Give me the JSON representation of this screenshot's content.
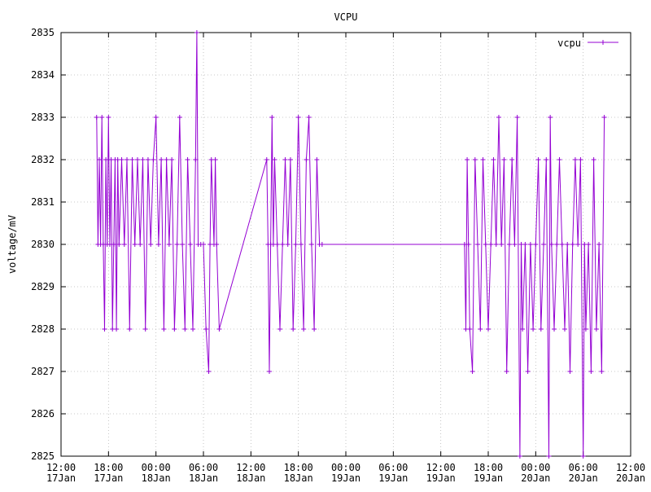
{
  "chart_data": {
    "type": "line",
    "title": "VCPU",
    "xlabel": "",
    "ylabel": "voltage/mV",
    "ylim": [
      2825,
      2835
    ],
    "y_ticks": [
      2825,
      2826,
      2827,
      2828,
      2829,
      2830,
      2831,
      2832,
      2833,
      2834,
      2835
    ],
    "x_range": [
      "2017-01-17 12:00",
      "2017-01-20 12:00"
    ],
    "x_ticks": [
      {
        "time": "12:00",
        "date": "17Jan"
      },
      {
        "time": "18:00",
        "date": "17Jan"
      },
      {
        "time": "00:00",
        "date": "18Jan"
      },
      {
        "time": "06:00",
        "date": "18Jan"
      },
      {
        "time": "12:00",
        "date": "18Jan"
      },
      {
        "time": "18:00",
        "date": "18Jan"
      },
      {
        "time": "00:00",
        "date": "19Jan"
      },
      {
        "time": "06:00",
        "date": "19Jan"
      },
      {
        "time": "12:00",
        "date": "19Jan"
      },
      {
        "time": "18:00",
        "date": "19Jan"
      },
      {
        "time": "00:00",
        "date": "20Jan"
      },
      {
        "time": "06:00",
        "date": "20Jan"
      },
      {
        "time": "12:00",
        "date": "20Jan"
      }
    ],
    "grid": true,
    "legend_position": "top-right",
    "series": [
      {
        "name": "vcpu",
        "color": "#9400d3",
        "points": [
          [
            "2017-01-17 16:30",
            2833
          ],
          [
            "2017-01-17 16:40",
            2830
          ],
          [
            "2017-01-17 16:50",
            2832
          ],
          [
            "2017-01-17 17:00",
            2830
          ],
          [
            "2017-01-17 17:10",
            2833
          ],
          [
            "2017-01-17 17:20",
            2830
          ],
          [
            "2017-01-17 17:30",
            2828
          ],
          [
            "2017-01-17 17:40",
            2832
          ],
          [
            "2017-01-17 17:50",
            2830
          ],
          [
            "2017-01-17 18:00",
            2833
          ],
          [
            "2017-01-17 18:10",
            2830
          ],
          [
            "2017-01-17 18:20",
            2832
          ],
          [
            "2017-01-17 18:30",
            2828
          ],
          [
            "2017-01-17 18:40",
            2830
          ],
          [
            "2017-01-17 18:50",
            2832
          ],
          [
            "2017-01-17 19:00",
            2828
          ],
          [
            "2017-01-17 19:10",
            2832
          ],
          [
            "2017-01-17 19:20",
            2830
          ],
          [
            "2017-01-17 19:40",
            2832
          ],
          [
            "2017-01-17 20:00",
            2830
          ],
          [
            "2017-01-17 20:20",
            2832
          ],
          [
            "2017-01-17 20:40",
            2828
          ],
          [
            "2017-01-17 21:00",
            2832
          ],
          [
            "2017-01-17 21:20",
            2830
          ],
          [
            "2017-01-17 21:40",
            2832
          ],
          [
            "2017-01-17 22:00",
            2830
          ],
          [
            "2017-01-17 22:20",
            2832
          ],
          [
            "2017-01-17 22:40",
            2828
          ],
          [
            "2017-01-17 23:00",
            2832
          ],
          [
            "2017-01-17 23:20",
            2830
          ],
          [
            "2017-01-17 23:40",
            2832
          ],
          [
            "2017-01-18 00:00",
            2833
          ],
          [
            "2017-01-18 00:20",
            2830
          ],
          [
            "2017-01-18 00:40",
            2832
          ],
          [
            "2017-01-18 01:00",
            2828
          ],
          [
            "2017-01-18 01:20",
            2832
          ],
          [
            "2017-01-18 01:40",
            2830
          ],
          [
            "2017-01-18 02:00",
            2832
          ],
          [
            "2017-01-18 02:20",
            2828
          ],
          [
            "2017-01-18 02:40",
            2830
          ],
          [
            "2017-01-18 03:00",
            2833
          ],
          [
            "2017-01-18 03:20",
            2830
          ],
          [
            "2017-01-18 03:40",
            2828
          ],
          [
            "2017-01-18 04:00",
            2832
          ],
          [
            "2017-01-18 04:20",
            2830
          ],
          [
            "2017-01-18 04:40",
            2828
          ],
          [
            "2017-01-18 05:00",
            2832
          ],
          [
            "2017-01-18 05:10",
            2835
          ],
          [
            "2017-01-18 05:20",
            2830
          ],
          [
            "2017-01-18 05:40",
            2830
          ],
          [
            "2017-01-18 06:00",
            2830
          ],
          [
            "2017-01-18 06:20",
            2828
          ],
          [
            "2017-01-18 06:40",
            2827
          ],
          [
            "2017-01-18 06:50",
            2830
          ],
          [
            "2017-01-18 07:00",
            2832
          ],
          [
            "2017-01-18 07:20",
            2830
          ],
          [
            "2017-01-18 07:30",
            2832
          ],
          [
            "2017-01-18 07:40",
            2830
          ],
          [
            "2017-01-18 08:00",
            2828
          ],
          [
            "2017-01-18 14:00",
            2832
          ],
          [
            "2017-01-18 14:10",
            2830
          ],
          [
            "2017-01-18 14:20",
            2827
          ],
          [
            "2017-01-18 14:30",
            2830
          ],
          [
            "2017-01-18 14:40",
            2833
          ],
          [
            "2017-01-18 14:50",
            2830
          ],
          [
            "2017-01-18 15:00",
            2832
          ],
          [
            "2017-01-18 15:20",
            2830
          ],
          [
            "2017-01-18 15:40",
            2828
          ],
          [
            "2017-01-18 16:00",
            2830
          ],
          [
            "2017-01-18 16:20",
            2832
          ],
          [
            "2017-01-18 16:40",
            2830
          ],
          [
            "2017-01-18 17:00",
            2832
          ],
          [
            "2017-01-18 17:20",
            2828
          ],
          [
            "2017-01-18 17:40",
            2830
          ],
          [
            "2017-01-18 18:00",
            2833
          ],
          [
            "2017-01-18 18:20",
            2830
          ],
          [
            "2017-01-18 18:40",
            2828
          ],
          [
            "2017-01-18 19:00",
            2832
          ],
          [
            "2017-01-18 19:20",
            2833
          ],
          [
            "2017-01-18 19:40",
            2830
          ],
          [
            "2017-01-18 20:00",
            2828
          ],
          [
            "2017-01-18 20:20",
            2832
          ],
          [
            "2017-01-18 20:40",
            2830
          ],
          [
            "2017-01-18 21:00",
            2830
          ],
          [
            "2017-01-19 15:00",
            2830
          ],
          [
            "2017-01-19 15:10",
            2828
          ],
          [
            "2017-01-19 15:20",
            2832
          ],
          [
            "2017-01-19 15:30",
            2830
          ],
          [
            "2017-01-19 15:40",
            2828
          ],
          [
            "2017-01-19 16:00",
            2827
          ],
          [
            "2017-01-19 16:20",
            2832
          ],
          [
            "2017-01-19 16:40",
            2830
          ],
          [
            "2017-01-19 17:00",
            2828
          ],
          [
            "2017-01-19 17:20",
            2832
          ],
          [
            "2017-01-19 17:40",
            2830
          ],
          [
            "2017-01-19 18:00",
            2828
          ],
          [
            "2017-01-19 18:20",
            2830
          ],
          [
            "2017-01-19 18:40",
            2832
          ],
          [
            "2017-01-19 19:00",
            2830
          ],
          [
            "2017-01-19 19:20",
            2833
          ],
          [
            "2017-01-19 19:40",
            2830
          ],
          [
            "2017-01-19 20:00",
            2832
          ],
          [
            "2017-01-19 20:20",
            2827
          ],
          [
            "2017-01-19 20:40",
            2830
          ],
          [
            "2017-01-19 21:00",
            2832
          ],
          [
            "2017-01-19 21:20",
            2830
          ],
          [
            "2017-01-19 21:40",
            2833
          ],
          [
            "2017-01-19 22:00",
            2825
          ],
          [
            "2017-01-19 22:10",
            2830
          ],
          [
            "2017-01-19 22:20",
            2828
          ],
          [
            "2017-01-19 22:40",
            2830
          ],
          [
            "2017-01-19 23:00",
            2827
          ],
          [
            "2017-01-19 23:20",
            2830
          ],
          [
            "2017-01-19 23:40",
            2828
          ],
          [
            "2017-01-20 00:00",
            2830
          ],
          [
            "2017-01-20 00:20",
            2832
          ],
          [
            "2017-01-20 00:40",
            2828
          ],
          [
            "2017-01-20 01:00",
            2830
          ],
          [
            "2017-01-20 01:20",
            2832
          ],
          [
            "2017-01-20 01:40",
            2825
          ],
          [
            "2017-01-20 01:50",
            2833
          ],
          [
            "2017-01-20 02:00",
            2830
          ],
          [
            "2017-01-20 02:20",
            2828
          ],
          [
            "2017-01-20 02:40",
            2830
          ],
          [
            "2017-01-20 03:00",
            2832
          ],
          [
            "2017-01-20 03:20",
            2830
          ],
          [
            "2017-01-20 03:40",
            2828
          ],
          [
            "2017-01-20 04:00",
            2830
          ],
          [
            "2017-01-20 04:20",
            2827
          ],
          [
            "2017-01-20 04:40",
            2830
          ],
          [
            "2017-01-20 05:00",
            2832
          ],
          [
            "2017-01-20 05:20",
            2830
          ],
          [
            "2017-01-20 05:40",
            2832
          ],
          [
            "2017-01-20 06:00",
            2825
          ],
          [
            "2017-01-20 06:10",
            2830
          ],
          [
            "2017-01-20 06:20",
            2828
          ],
          [
            "2017-01-20 06:40",
            2830
          ],
          [
            "2017-01-20 07:00",
            2827
          ],
          [
            "2017-01-20 07:20",
            2832
          ],
          [
            "2017-01-20 07:40",
            2828
          ],
          [
            "2017-01-20 08:00",
            2830
          ],
          [
            "2017-01-20 08:20",
            2827
          ],
          [
            "2017-01-20 08:40",
            2833
          ]
        ]
      }
    ]
  }
}
